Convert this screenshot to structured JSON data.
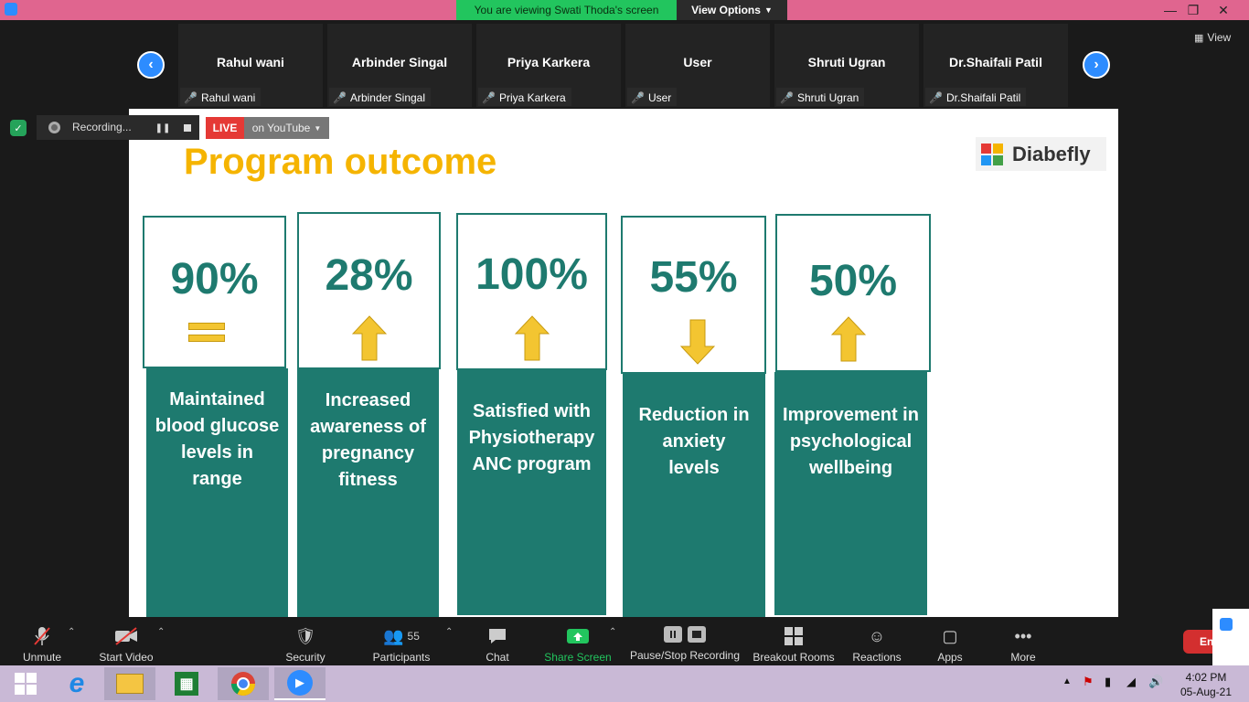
{
  "titlebar": {
    "viewing_banner": "You are viewing Swati Thoda's screen",
    "view_options": "View Options"
  },
  "participants": [
    {
      "name": "Rahul wani",
      "label": "Rahul wani"
    },
    {
      "name": "Arbinder Singal",
      "label": "Arbinder Singal"
    },
    {
      "name": "Priya Karkera",
      "label": "Priya Karkera"
    },
    {
      "name": "User",
      "label": "User"
    },
    {
      "name": "Shruti Ugran",
      "label": "Shruti Ugran"
    },
    {
      "name": "Dr.Shaifali Patil",
      "label": "Dr.Shaifali Patil"
    }
  ],
  "view_button": "View",
  "recording": {
    "label": "Recording...",
    "live": "LIVE",
    "youtube": "on YouTube"
  },
  "slide": {
    "title": "Program outcome",
    "logo_text": "Diabefly",
    "cards": [
      {
        "stat": "90%",
        "indicator": "equal",
        "text": [
          "Maintained",
          "blood glucose",
          "levels in",
          "range"
        ]
      },
      {
        "stat": "28%",
        "indicator": "up",
        "text": [
          "Increased",
          "awareness of",
          "pregnancy",
          "fitness"
        ]
      },
      {
        "stat": "100%",
        "indicator": "up",
        "text": [
          "Satisfied with",
          "Physiotherapy",
          "ANC program"
        ]
      },
      {
        "stat": "55%",
        "indicator": "down",
        "text": [
          "Reduction in",
          "anxiety",
          "levels"
        ]
      },
      {
        "stat": "50%",
        "indicator": "up",
        "text": [
          "Improvement in",
          "psychological",
          "wellbeing"
        ]
      }
    ],
    "colors": {
      "teal": "#1e7a6f",
      "gold": "#f5b400",
      "arrow": "#f3c531"
    }
  },
  "toolbar": {
    "unmute": "Unmute",
    "start_video": "Start Video",
    "security": "Security",
    "participants": "Participants",
    "participants_count": "55",
    "chat": "Chat",
    "share_screen": "Share Screen",
    "pause_stop": "Pause/Stop Recording",
    "breakout": "Breakout Rooms",
    "reactions": "Reactions",
    "apps": "Apps",
    "more": "More",
    "end": "En"
  },
  "taskbar": {
    "time": "4:02 PM",
    "date": "05-Aug-21"
  }
}
